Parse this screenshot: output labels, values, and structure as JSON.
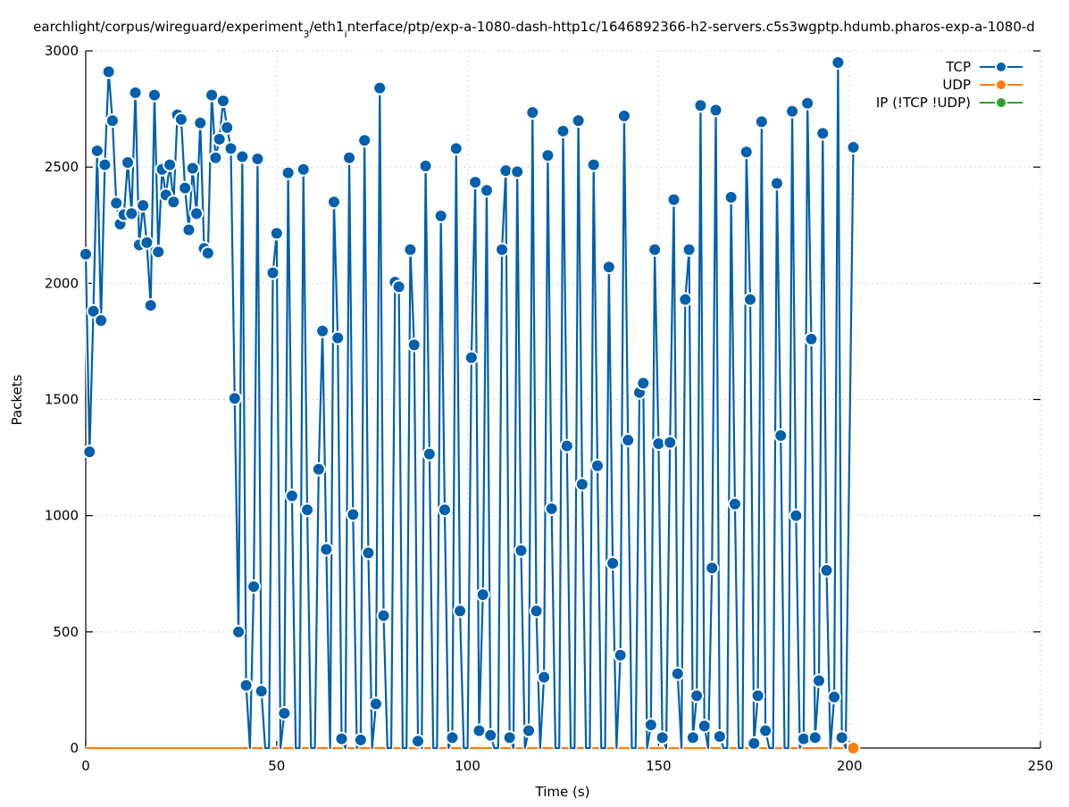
{
  "chart_data": {
    "type": "line",
    "title": "earchlight/corpus/wireguard/experiment_3/eth1_interface/ptp/exp-a-1080-dash-http1c/1646892366-h2-servers.c5s3wgptp.hdumb.pharos-exp-a-1080-d",
    "title_parts": [
      "earchlight/corpus/wireguard/experiment",
      "3",
      "/eth1",
      "i",
      "nterface/ptp/exp-a-1080-dash-http1c/1646892366-h2-servers.c5s3wgptp.hdumb.pharos-exp-a-1080-d"
    ],
    "xlabel": "Time (s)",
    "ylabel": "Packets",
    "xlim": [
      0,
      250
    ],
    "ylim": [
      0,
      3000
    ],
    "xticks": [
      "0",
      "50",
      "100",
      "150",
      "200",
      "250"
    ],
    "yticks": [
      "0",
      "500",
      "1000",
      "1500",
      "2000",
      "2500",
      "3000"
    ],
    "grid": true,
    "legend_position": "top-right",
    "series": [
      {
        "name": "TCP",
        "color": "#0060ad",
        "points": [
          [
            0,
            2125
          ],
          [
            1,
            1275
          ],
          [
            2,
            1880
          ],
          [
            3,
            2570
          ],
          [
            4,
            1840
          ],
          [
            5,
            2510
          ],
          [
            6,
            2910
          ],
          [
            7,
            2700
          ],
          [
            8,
            2345
          ],
          [
            9,
            2255
          ],
          [
            10,
            2295
          ],
          [
            11,
            2520
          ],
          [
            12,
            2300
          ],
          [
            13,
            2820
          ],
          [
            14,
            2165
          ],
          [
            15,
            2335
          ],
          [
            16,
            2175
          ],
          [
            17,
            1905
          ],
          [
            18,
            2810
          ],
          [
            19,
            2135
          ],
          [
            20,
            2490
          ],
          [
            21,
            2380
          ],
          [
            22,
            2510
          ],
          [
            23,
            2350
          ],
          [
            24,
            2725
          ],
          [
            25,
            2705
          ],
          [
            26,
            2410
          ],
          [
            27,
            2230
          ],
          [
            28,
            2495
          ],
          [
            29,
            2300
          ],
          [
            30,
            2690
          ],
          [
            31,
            2150
          ],
          [
            32,
            2130
          ],
          [
            33,
            2810
          ],
          [
            34,
            2540
          ],
          [
            35,
            2620
          ],
          [
            36,
            2785
          ],
          [
            37,
            2670
          ],
          [
            38,
            2580
          ],
          [
            39,
            1505
          ],
          [
            40,
            500
          ],
          [
            41,
            2545
          ],
          [
            42,
            270
          ],
          [
            43,
            0
          ],
          [
            44,
            695
          ],
          [
            45,
            2535
          ],
          [
            46,
            245
          ],
          [
            47,
            0
          ],
          [
            48,
            0
          ],
          [
            49,
            2045
          ],
          [
            50,
            2215
          ],
          [
            51,
            0
          ],
          [
            52,
            150
          ],
          [
            53,
            2475
          ],
          [
            54,
            1085
          ],
          [
            55,
            0
          ],
          [
            56,
            0
          ],
          [
            57,
            2490
          ],
          [
            58,
            1025
          ],
          [
            59,
            0
          ],
          [
            60,
            0
          ],
          [
            61,
            1200
          ],
          [
            62,
            1795
          ],
          [
            63,
            855
          ],
          [
            64,
            0
          ],
          [
            65,
            2350
          ],
          [
            66,
            1765
          ],
          [
            67,
            40
          ],
          [
            68,
            0
          ],
          [
            69,
            2540
          ],
          [
            70,
            1005
          ],
          [
            71,
            0
          ],
          [
            72,
            35
          ],
          [
            73,
            2615
          ],
          [
            74,
            840
          ],
          [
            75,
            0
          ],
          [
            76,
            190
          ],
          [
            77,
            2840
          ],
          [
            78,
            570
          ],
          [
            79,
            0
          ],
          [
            80,
            0
          ],
          [
            81,
            2005
          ],
          [
            82,
            1985
          ],
          [
            83,
            0
          ],
          [
            84,
            0
          ],
          [
            85,
            2145
          ],
          [
            86,
            1735
          ],
          [
            87,
            30
          ],
          [
            88,
            0
          ],
          [
            89,
            2505
          ],
          [
            90,
            1265
          ],
          [
            91,
            0
          ],
          [
            92,
            0
          ],
          [
            93,
            2290
          ],
          [
            94,
            1025
          ],
          [
            95,
            0
          ],
          [
            96,
            45
          ],
          [
            97,
            2580
          ],
          [
            98,
            590
          ],
          [
            99,
            0
          ],
          [
            100,
            0
          ],
          [
            101,
            1680
          ],
          [
            102,
            2435
          ],
          [
            103,
            75
          ],
          [
            104,
            660
          ],
          [
            105,
            2400
          ],
          [
            106,
            55
          ],
          [
            107,
            0
          ],
          [
            108,
            0
          ],
          [
            109,
            2145
          ],
          [
            110,
            2485
          ],
          [
            111,
            45
          ],
          [
            112,
            0
          ],
          [
            113,
            2480
          ],
          [
            114,
            850
          ],
          [
            115,
            0
          ],
          [
            116,
            75
          ],
          [
            117,
            2735
          ],
          [
            118,
            590
          ],
          [
            119,
            0
          ],
          [
            120,
            305
          ],
          [
            121,
            2550
          ],
          [
            122,
            1030
          ],
          [
            123,
            0
          ],
          [
            124,
            0
          ],
          [
            125,
            2655
          ],
          [
            126,
            1300
          ],
          [
            127,
            0
          ],
          [
            128,
            0
          ],
          [
            129,
            2700
          ],
          [
            130,
            1135
          ],
          [
            131,
            0
          ],
          [
            132,
            0
          ],
          [
            133,
            2510
          ],
          [
            134,
            1215
          ],
          [
            135,
            0
          ],
          [
            136,
            0
          ],
          [
            137,
            2070
          ],
          [
            138,
            795
          ],
          [
            139,
            0
          ],
          [
            140,
            400
          ],
          [
            141,
            2720
          ],
          [
            142,
            1325
          ],
          [
            143,
            0
          ],
          [
            144,
            0
          ],
          [
            145,
            1530
          ],
          [
            146,
            1570
          ],
          [
            147,
            0
          ],
          [
            148,
            100
          ],
          [
            149,
            2145
          ],
          [
            150,
            1310
          ],
          [
            151,
            45
          ],
          [
            152,
            0
          ],
          [
            153,
            1315
          ],
          [
            154,
            2360
          ],
          [
            155,
            320
          ],
          [
            156,
            0
          ],
          [
            157,
            1930
          ],
          [
            158,
            2145
          ],
          [
            159,
            45
          ],
          [
            160,
            225
          ],
          [
            161,
            2765
          ],
          [
            162,
            95
          ],
          [
            163,
            0
          ],
          [
            164,
            775
          ],
          [
            165,
            2745
          ],
          [
            166,
            50
          ],
          [
            167,
            0
          ],
          [
            168,
            0
          ],
          [
            169,
            2370
          ],
          [
            170,
            1050
          ],
          [
            171,
            0
          ],
          [
            172,
            0
          ],
          [
            173,
            2565
          ],
          [
            174,
            1930
          ],
          [
            175,
            20
          ],
          [
            176,
            225
          ],
          [
            177,
            2695
          ],
          [
            178,
            75
          ],
          [
            179,
            0
          ],
          [
            180,
            0
          ],
          [
            181,
            2430
          ],
          [
            182,
            1345
          ],
          [
            183,
            0
          ],
          [
            184,
            0
          ],
          [
            185,
            2740
          ],
          [
            186,
            1000
          ],
          [
            187,
            0
          ],
          [
            188,
            40
          ],
          [
            189,
            2775
          ],
          [
            190,
            1760
          ],
          [
            191,
            45
          ],
          [
            192,
            290
          ],
          [
            193,
            2645
          ],
          [
            194,
            765
          ],
          [
            195,
            0
          ],
          [
            196,
            220
          ],
          [
            197,
            2950
          ],
          [
            198,
            45
          ],
          [
            199,
            0
          ],
          [
            201,
            2585
          ]
        ]
      },
      {
        "name": "UDP",
        "color": "#ff7f0e",
        "points": [
          [
            0,
            0
          ],
          [
            201,
            0
          ]
        ]
      },
      {
        "name": "IP (!TCP  !UDP)",
        "color": "#2ca02c",
        "points": [
          [
            0,
            0
          ],
          [
            201,
            0
          ]
        ]
      }
    ]
  }
}
